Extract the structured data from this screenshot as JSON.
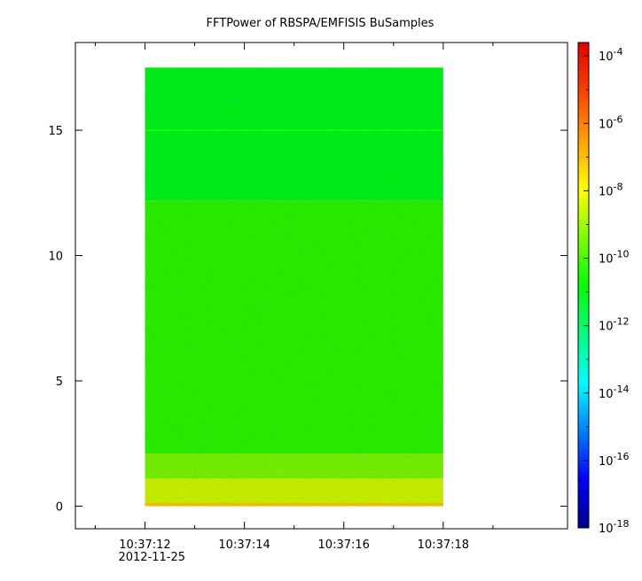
{
  "chart_data": {
    "type": "heatmap",
    "title": "FFTPower of RBSPA/EMFISIS  BuSamples",
    "xlabel": "",
    "ylabel": "",
    "x_ticks": [
      {
        "label": "10:37:12",
        "sublabel": "2012-11-25",
        "value": 12
      },
      {
        "label": "10:37:14",
        "sublabel": "",
        "value": 14
      },
      {
        "label": "10:37:16",
        "sublabel": "",
        "value": 16
      },
      {
        "label": "10:37:18",
        "sublabel": "",
        "value": 18
      }
    ],
    "x_minor_ticks": [
      11,
      13,
      15,
      17,
      19
    ],
    "xlim": [
      10.6,
      20.5
    ],
    "y_ticks": [
      0,
      5,
      10,
      15
    ],
    "ylim": [
      -0.9,
      18.5
    ],
    "colorbar": {
      "scale": "log",
      "range": [
        -18,
        -3.6
      ],
      "tick_exponents": [
        -4,
        -6,
        -8,
        -10,
        -12,
        -14,
        -16,
        -18
      ],
      "colors": [
        "#00008c",
        "#0000ff",
        "#0080ff",
        "#00ffff",
        "#00ff80",
        "#00ff00",
        "#80ff00",
        "#ffff00",
        "#ffa000",
        "#ff4000",
        "#e00000"
      ]
    },
    "grid": false,
    "data_extent": {
      "x": [
        12,
        18
      ],
      "y": [
        0,
        17.5
      ]
    },
    "bands": [
      {
        "y": [
          0,
          0.15
        ],
        "level": -7.2
      },
      {
        "y": [
          0.15,
          1.1
        ],
        "level": -8.4
      },
      {
        "y": [
          1.1,
          2.1
        ],
        "level": -9.4
      },
      {
        "y": [
          2.1,
          12.2
        ],
        "level": -10.3
      },
      {
        "y": [
          12.2,
          17.5
        ],
        "level": -11.1
      }
    ],
    "line_feature": {
      "y": 15.0,
      "level": -10.6
    }
  }
}
